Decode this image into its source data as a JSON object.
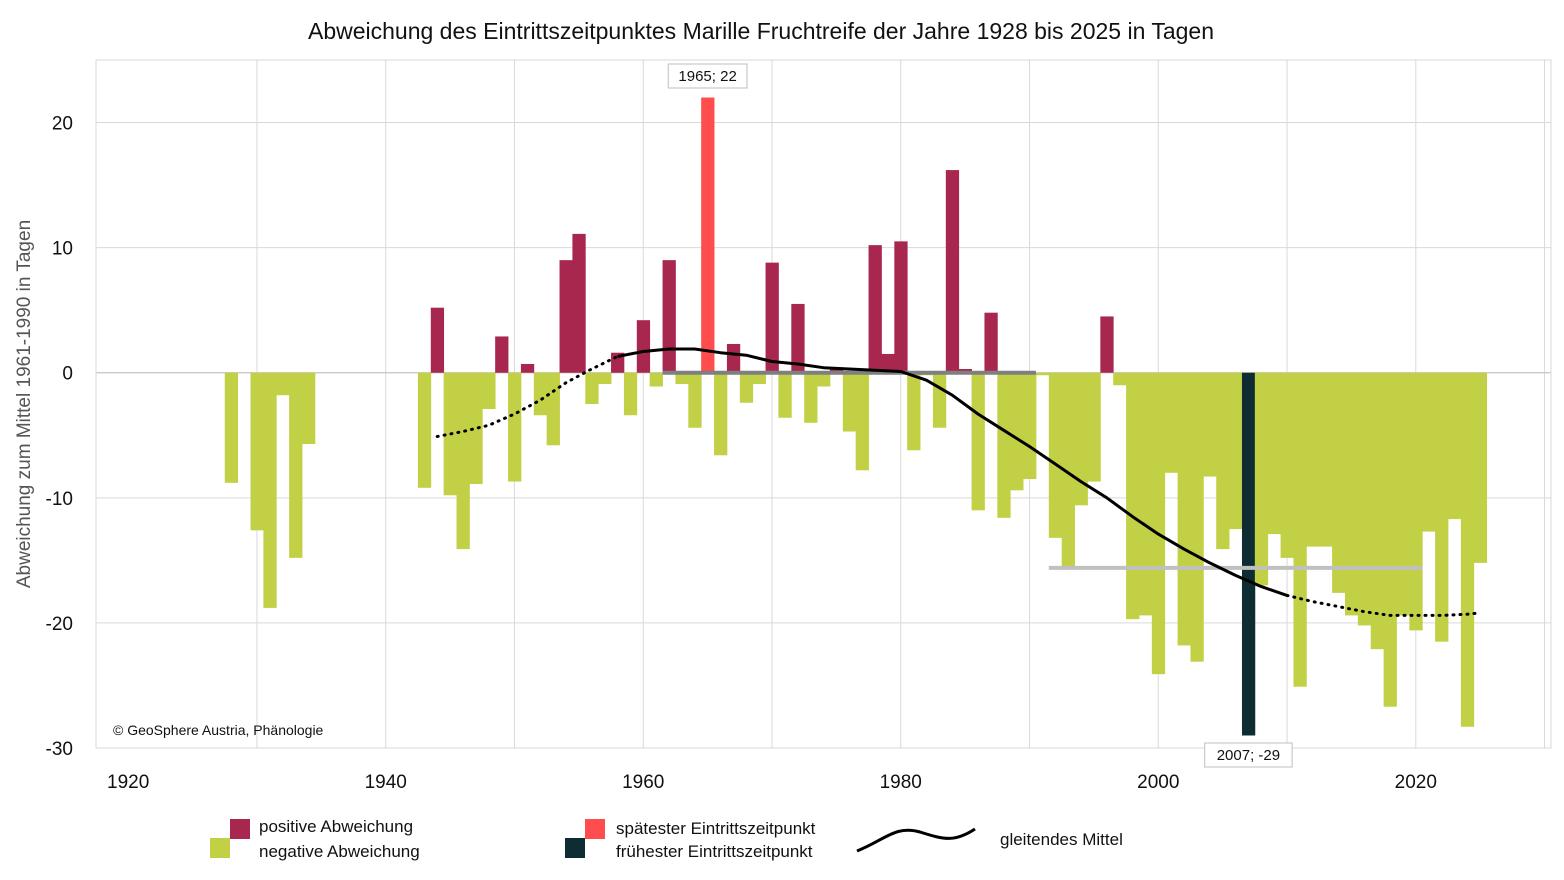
{
  "chart_data": {
    "type": "bar",
    "title": "Abweichung des Eintrittszeitpunktes Marille Fruchtreife der Jahre 1928 bis 2025 in Tagen",
    "ylabel": "Abweichung zum Mittel 1961-1990 in Tagen",
    "xlabel": "",
    "xlim": [
      1917.5,
      2030.5
    ],
    "ylim": [
      -30,
      25
    ],
    "x_ticks": [
      1920,
      1940,
      1960,
      1980,
      2000,
      2020
    ],
    "y_ticks": [
      20,
      10,
      0,
      -10,
      -20,
      -30
    ],
    "grid": true,
    "copyright": "© GeoSphere Austria, Phänologie",
    "colors": {
      "positive": "#a8274f",
      "negative": "#c2d045",
      "latest": "#ff4d4d",
      "earliest": "#0d2d33",
      "smooth": "#000000",
      "mean_1961_1990": "#7f7f7f",
      "mean_1991_2020": "#c0c0c0",
      "grid": "#d9d9d9"
    },
    "years": [
      1928,
      1929,
      1930,
      1931,
      1932,
      1933,
      1934,
      1935,
      1936,
      1937,
      1938,
      1939,
      1940,
      1941,
      1942,
      1943,
      1944,
      1945,
      1946,
      1947,
      1948,
      1949,
      1950,
      1951,
      1952,
      1953,
      1954,
      1955,
      1956,
      1957,
      1958,
      1959,
      1960,
      1961,
      1962,
      1963,
      1964,
      1965,
      1966,
      1967,
      1968,
      1969,
      1970,
      1971,
      1972,
      1973,
      1974,
      1975,
      1976,
      1977,
      1978,
      1979,
      1980,
      1981,
      1982,
      1983,
      1984,
      1985,
      1986,
      1987,
      1988,
      1989,
      1990,
      1991,
      1992,
      1993,
      1994,
      1995,
      1996,
      1997,
      1998,
      1999,
      2000,
      2001,
      2002,
      2003,
      2004,
      2005,
      2006,
      2007,
      2008,
      2009,
      2010,
      2011,
      2012,
      2013,
      2014,
      2015,
      2016,
      2017,
      2018,
      2019,
      2020,
      2021,
      2022,
      2023,
      2024,
      2025
    ],
    "values": [
      -8.8,
      null,
      -12.6,
      -18.8,
      -1.8,
      -14.8,
      -5.7,
      null,
      null,
      null,
      null,
      null,
      null,
      null,
      null,
      -9.2,
      5.2,
      -9.8,
      -14.1,
      -8.9,
      -2.9,
      2.9,
      -8.7,
      0.7,
      -3.4,
      -5.8,
      9.0,
      11.1,
      -2.5,
      -0.9,
      1.6,
      -3.4,
      4.2,
      -1.1,
      9.0,
      -0.9,
      -4.4,
      22,
      -6.6,
      2.3,
      -2.4,
      -0.9,
      8.8,
      -3.6,
      5.5,
      -4.0,
      -1.1,
      0.3,
      -4.7,
      -7.8,
      10.2,
      1.5,
      10.5,
      -6.2,
      -0.2,
      -4.4,
      16.2,
      0.3,
      -11.0,
      4.8,
      -11.6,
      -9.4,
      -8.5,
      -0.2,
      -13.2,
      -15.5,
      -10.6,
      -8.7,
      4.5,
      -1.0,
      -19.7,
      -19.4,
      -24.1,
      -8.0,
      -21.8,
      -23.1,
      -8.3,
      -14.1,
      -12.5,
      -29,
      -17.0,
      -12.9,
      -14.8,
      -25.1,
      -13.9,
      -13.9,
      -17.6,
      -19.4,
      -20.2,
      -22.1,
      -26.7,
      -19.4,
      -20.6,
      -12.7,
      -21.5,
      -11.7,
      -28.3,
      -15.2
    ],
    "smooth_solid": [
      [
        1958,
        1.3
      ],
      [
        1960,
        1.7
      ],
      [
        1962,
        1.9
      ],
      [
        1964,
        1.9
      ],
      [
        1966,
        1.6
      ],
      [
        1968,
        1.4
      ],
      [
        1970,
        0.9
      ],
      [
        1972,
        0.7
      ],
      [
        1974,
        0.4
      ],
      [
        1976,
        0.3
      ],
      [
        1978,
        0.2
      ],
      [
        1980,
        0.1
      ],
      [
        1982,
        -0.6
      ],
      [
        1984,
        -1.8
      ],
      [
        1986,
        -3.3
      ],
      [
        1988,
        -4.6
      ],
      [
        1990,
        -5.9
      ],
      [
        1992,
        -7.3
      ],
      [
        1994,
        -8.7
      ],
      [
        1996,
        -10.0
      ],
      [
        1998,
        -11.5
      ],
      [
        2000,
        -12.9
      ],
      [
        2002,
        -14.1
      ],
      [
        2004,
        -15.2
      ],
      [
        2006,
        -16.2
      ],
      [
        2008,
        -17.1
      ],
      [
        2010,
        -17.8
      ]
    ],
    "smooth_dotted_start": [
      [
        1944,
        -5.1
      ],
      [
        1946,
        -4.7
      ],
      [
        1948,
        -4.2
      ],
      [
        1950,
        -3.3
      ],
      [
        1952,
        -2.2
      ],
      [
        1954,
        -0.8
      ],
      [
        1956,
        0.3
      ],
      [
        1958,
        1.3
      ]
    ],
    "smooth_dotted_end": [
      [
        2010,
        -17.8
      ],
      [
        2012,
        -18.3
      ],
      [
        2014,
        -18.7
      ],
      [
        2016,
        -19.1
      ],
      [
        2018,
        -19.4
      ],
      [
        2020,
        -19.4
      ],
      [
        2022,
        -19.4
      ],
      [
        2024,
        -19.3
      ],
      [
        2025,
        -19.2
      ]
    ],
    "mean_line_1961_1990": {
      "from": 1961.5,
      "to": 1990.5,
      "value": 0
    },
    "mean_line_1991_2020": {
      "from": 1991.5,
      "to": 2020.5,
      "value": -15.6
    },
    "annotations": [
      {
        "year": 1965,
        "label": "1965; 22",
        "position": "above"
      },
      {
        "year": 2007,
        "label": "2007; -29",
        "position": "below"
      }
    ],
    "legend": {
      "positive": "positive Abweichung",
      "negative": "negative Abweichung",
      "latest": "spätester Eintrittszeitpunkt",
      "earliest": "frühester Eintrittszeitpunkt",
      "smooth": "gleitendes Mittel"
    }
  }
}
